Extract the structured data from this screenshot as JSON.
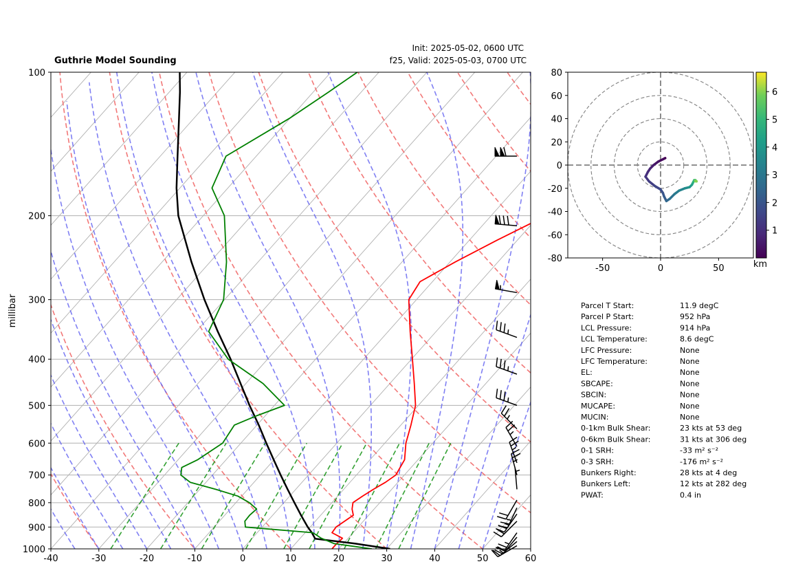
{
  "header": {
    "title": "Guthrie Model Sounding",
    "init": "Init: 2025-05-02, 0600 UTC",
    "valid": "f25, Valid: 2025-05-03, 0700 UTC"
  },
  "chart_data": [
    {
      "type": "line",
      "subtype": "skew-t log-p",
      "ylabel": "millibar",
      "xlim": [
        -40,
        60
      ],
      "ylim": [
        1000,
        100
      ],
      "y_scale": "log",
      "xticks": [
        -40,
        -30,
        -20,
        -10,
        0,
        10,
        20,
        30,
        40,
        50,
        60
      ],
      "yticks": [
        1000,
        900,
        800,
        700,
        600,
        500,
        400,
        300,
        200,
        100
      ],
      "isotherms": {
        "style": "solid",
        "color": "#b0b0b0",
        "interval": 10
      },
      "dry_adiabats": {
        "style": "dashed",
        "color": "#f06060"
      },
      "moist_adiabats": {
        "style": "dashed",
        "color": "#6060f0"
      },
      "mixing_ratio_lines": {
        "style": "dashed",
        "color": "#109010"
      },
      "series": [
        {
          "color": "#ff0000",
          "points": [
            [
              1000,
              18.6
            ],
            [
              975,
              18.6
            ],
            [
              950,
              18.8
            ],
            [
              925,
              15.6
            ],
            [
              900,
              15.4
            ],
            [
              850,
              16.8
            ],
            [
              825,
              15.4
            ],
            [
              800,
              14.4
            ],
            [
              775,
              15.2
            ],
            [
              750,
              16.2
            ],
            [
              725,
              17.4
            ],
            [
              700,
              18.2
            ],
            [
              650,
              17.2
            ],
            [
              600,
              14.4
            ],
            [
              550,
              12.1
            ],
            [
              500,
              9.4
            ],
            [
              450,
              5.1
            ],
            [
              400,
              0.2
            ],
            [
              350,
              -5.4
            ],
            [
              300,
              -11.6
            ],
            [
              275,
              -12.6
            ],
            [
              250,
              -8.9
            ],
            [
              225,
              -4.2
            ],
            [
              200,
              1.5
            ],
            [
              175,
              9.2
            ],
            [
              150,
              18.6
            ],
            [
              125,
              29.9
            ],
            [
              110,
              37.6
            ],
            [
              100,
              43.1
            ]
          ]
        },
        {
          "color": "#000000",
          "points": [
            [
              1000,
              30.7
            ],
            [
              975,
              22.5
            ],
            [
              952,
              13.2
            ],
            [
              925,
              11.4
            ],
            [
              900,
              9.5
            ],
            [
              850,
              5.9
            ],
            [
              800,
              2.2
            ],
            [
              750,
              -1.7
            ],
            [
              700,
              -5.8
            ],
            [
              650,
              -10.1
            ],
            [
              600,
              -14.7
            ],
            [
              550,
              -19.6
            ],
            [
              500,
              -25.2
            ],
            [
              450,
              -31.1
            ],
            [
              400,
              -37.7
            ],
            [
              350,
              -45.5
            ],
            [
              300,
              -54.2
            ],
            [
              250,
              -63.9
            ],
            [
              200,
              -75.2
            ],
            [
              175,
              -80.7
            ],
            [
              150,
              -86.4
            ],
            [
              125,
              -93.1
            ],
            [
              110,
              -97.8
            ],
            [
              100,
              -101.5
            ]
          ]
        },
        {
          "color": "#008000",
          "points": [
            [
              1000,
              26.9
            ],
            [
              975,
              18.1
            ],
            [
              950,
              14.4
            ],
            [
              925,
              11.6
            ],
            [
              900,
              -3.5
            ],
            [
              875,
              -4.7
            ],
            [
              850,
              -4.8
            ],
            [
              825,
              -4.5
            ],
            [
              800,
              -7.2
            ],
            [
              775,
              -10.8
            ],
            [
              750,
              -16.7
            ],
            [
              725,
              -23.3
            ],
            [
              700,
              -26.6
            ],
            [
              675,
              -27.8
            ],
            [
              650,
              -25.9
            ],
            [
              600,
              -23.8
            ],
            [
              550,
              -24.7
            ],
            [
              525,
              -21.7
            ],
            [
              500,
              -17.9
            ],
            [
              450,
              -26.4
            ],
            [
              400,
              -38.2
            ],
            [
              350,
              -47.4
            ],
            [
              300,
              -50.2
            ],
            [
              250,
              -56.6
            ],
            [
              200,
              -65.6
            ],
            [
              175,
              -73.3
            ],
            [
              150,
              -76.3
            ],
            [
              125,
              -70.1
            ],
            [
              110,
              -66.8
            ],
            [
              100,
              -64.5
            ]
          ]
        }
      ],
      "wind_barbs": [
        {
          "pressure": 985,
          "direction": 240,
          "speed_kts": 10
        },
        {
          "pressure": 965,
          "direction": 230,
          "speed_kts": 15
        },
        {
          "pressure": 945,
          "direction": 220,
          "speed_kts": 20
        },
        {
          "pressure": 925,
          "direction": 215,
          "speed_kts": 25
        },
        {
          "pressure": 875,
          "direction": 225,
          "speed_kts": 20
        },
        {
          "pressure": 845,
          "direction": 215,
          "speed_kts": 25
        },
        {
          "pressure": 820,
          "direction": 205,
          "speed_kts": 25
        },
        {
          "pressure": 790,
          "direction": 210,
          "speed_kts": 20
        },
        {
          "pressure": 750,
          "direction": 355,
          "speed_kts": 5
        },
        {
          "pressure": 700,
          "direction": 345,
          "speed_kts": 25
        },
        {
          "pressure": 660,
          "direction": 340,
          "speed_kts": 25
        },
        {
          "pressure": 610,
          "direction": 330,
          "speed_kts": 25
        },
        {
          "pressure": 560,
          "direction": 315,
          "speed_kts": 25
        },
        {
          "pressure": 500,
          "direction": 290,
          "speed_kts": 35
        },
        {
          "pressure": 430,
          "direction": 290,
          "speed_kts": 35
        },
        {
          "pressure": 360,
          "direction": 290,
          "speed_kts": 35
        },
        {
          "pressure": 290,
          "direction": 280,
          "speed_kts": 55
        },
        {
          "pressure": 210,
          "direction": 275,
          "speed_kts": 80
        },
        {
          "pressure": 150,
          "direction": 270,
          "speed_kts": 110
        }
      ]
    },
    {
      "type": "line",
      "subtype": "hodograph",
      "xlim": [
        -80,
        80
      ],
      "ylim": [
        -80,
        80
      ],
      "xticks": [
        -50,
        0,
        50
      ],
      "yticks": [
        80,
        60,
        40,
        20,
        0,
        -20,
        -40,
        -60,
        -80
      ],
      "rings": [
        20,
        40,
        60,
        80
      ],
      "colorbar": {
        "label": "km",
        "ticks": [
          1,
          2,
          3,
          4,
          5,
          6
        ],
        "range": [
          0,
          6.7
        ],
        "colormap": "viridis"
      },
      "points": [
        [
          4,
          6,
          0.0
        ],
        [
          2,
          5,
          0.2
        ],
        [
          -2,
          3,
          0.4
        ],
        [
          -6,
          0,
          0.6
        ],
        [
          -9,
          -3,
          0.8
        ],
        [
          -11,
          -6,
          1.0
        ],
        [
          -13,
          -10,
          1.2
        ],
        [
          -10,
          -14,
          1.4
        ],
        [
          -5,
          -18,
          1.6
        ],
        [
          0,
          -21,
          1.8
        ],
        [
          2,
          -24,
          2.0
        ],
        [
          3,
          -27,
          2.2
        ],
        [
          5,
          -31,
          2.5
        ],
        [
          8,
          -29,
          2.8
        ],
        [
          12,
          -25,
          3.1
        ],
        [
          16,
          -22,
          3.4
        ],
        [
          21,
          -20,
          3.7
        ],
        [
          25,
          -19,
          4.0
        ],
        [
          27,
          -17,
          4.4
        ],
        [
          28,
          -15,
          4.8
        ],
        [
          29,
          -13,
          5.2
        ],
        [
          30,
          -13,
          5.6
        ],
        [
          31,
          -14,
          6.0
        ],
        [
          30,
          -14,
          6.4
        ]
      ]
    }
  ],
  "parameters": [
    {
      "label": "Parcel T Start:",
      "value": "11.9 degC"
    },
    {
      "label": "Parcel P Start:",
      "value": "952 hPa"
    },
    {
      "label": "LCL Pressure:",
      "value": "914 hPa"
    },
    {
      "label": "LCL Temperature:",
      "value": "8.6 degC"
    },
    {
      "label": "LFC Pressure:",
      "value": "None"
    },
    {
      "label": "LFC Temperature:",
      "value": "None"
    },
    {
      "label": "EL:",
      "value": "None"
    },
    {
      "label": "SBCAPE:",
      "value": "None"
    },
    {
      "label": "SBCIN:",
      "value": "None"
    },
    {
      "label": "MUCAPE:",
      "value": "None"
    },
    {
      "label": "MUCIN:",
      "value": "None"
    },
    {
      "label": "0-1km Bulk Shear:",
      "value": "23 kts at 53 deg"
    },
    {
      "label": "0-6km Bulk Shear:",
      "value": "31 kts at 306 deg"
    },
    {
      "label": "0-1 SRH:",
      "value": "-33 m² s⁻²"
    },
    {
      "label": "0-3 SRH:",
      "value": "-176 m² s⁻²"
    },
    {
      "label": "Bunkers Right:",
      "value": "28 kts at 4 deg"
    },
    {
      "label": "Bunkers Left:",
      "value": "12 kts at 282 deg"
    },
    {
      "label": "PWAT:",
      "value": "0.4 in"
    }
  ]
}
